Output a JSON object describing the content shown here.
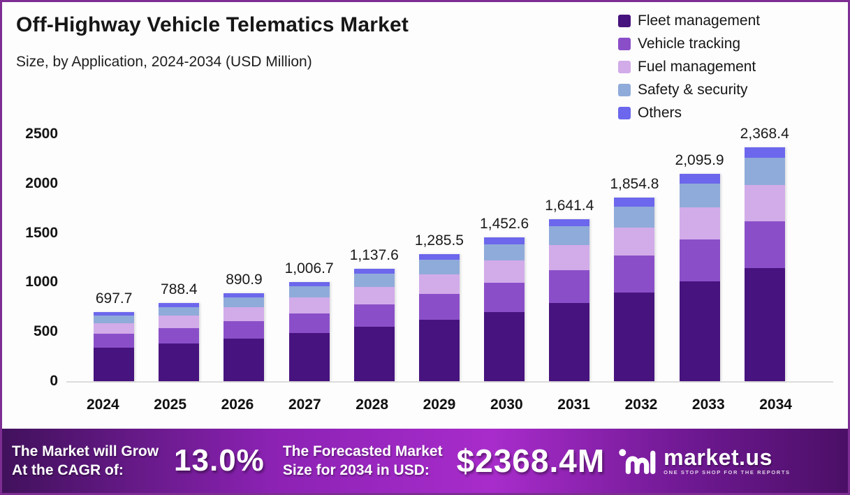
{
  "page": {
    "border_color": "#7e2d93",
    "background": "#fdfdfd"
  },
  "header": {
    "title": "Off-Highway Vehicle Telematics Market",
    "subtitle": "Size, by Application, 2024-2034 (USD Million)"
  },
  "legend": [
    {
      "label": "Fleet management",
      "color": "#47137e"
    },
    {
      "label": "Vehicle tracking",
      "color": "#8a4fc8"
    },
    {
      "label": "Fuel management",
      "color": "#d2abe9"
    },
    {
      "label": "Safety & security",
      "color": "#8fabda"
    },
    {
      "label": "Others",
      "color": "#6c67ec"
    }
  ],
  "chart_data": {
    "type": "bar",
    "stacked": true,
    "title": "Off-Highway Vehicle Telematics Market Size, by Application, 2024-2034 (USD Million)",
    "categories": [
      "2024",
      "2025",
      "2026",
      "2027",
      "2028",
      "2029",
      "2030",
      "2031",
      "2032",
      "2033",
      "2034"
    ],
    "totals": [
      697.7,
      788.4,
      890.9,
      1006.7,
      1137.6,
      1285.5,
      1452.6,
      1641.4,
      1854.8,
      2095.9,
      2368.4
    ],
    "total_labels": [
      "697.7",
      "788.4",
      "890.9",
      "1,006.7",
      "1,137.6",
      "1,285.5",
      "1,452.6",
      "1,641.4",
      "1,854.8",
      "2,095.9",
      "2,368.4"
    ],
    "series": [
      {
        "name": "Fleet management",
        "color": "#47137e",
        "values": [
          336.3,
          380.0,
          429.4,
          485.2,
          548.3,
          619.6,
          700.2,
          791.2,
          894.0,
          1010.2,
          1141.6
        ]
      },
      {
        "name": "Vehicle tracking",
        "color": "#8a4fc8",
        "values": [
          140.9,
          159.3,
          180.0,
          203.4,
          229.8,
          259.7,
          293.4,
          331.6,
          374.7,
          423.4,
          478.4
        ]
      },
      {
        "name": "Fuel management",
        "color": "#d2abe9",
        "values": [
          108.1,
          122.2,
          138.1,
          156.0,
          176.3,
          199.3,
          225.2,
          254.4,
          287.5,
          324.9,
          367.1
        ]
      },
      {
        "name": "Safety & security",
        "color": "#8fabda",
        "values": [
          80.2,
          90.7,
          102.5,
          115.8,
          130.8,
          147.8,
          167.0,
          188.8,
          213.3,
          241.0,
          272.4
        ]
      },
      {
        "name": "Others",
        "color": "#6c67ec",
        "values": [
          32.1,
          36.3,
          41.0,
          46.3,
          52.3,
          59.1,
          66.8,
          75.5,
          85.3,
          96.4,
          108.9
        ]
      }
    ],
    "xlabel": "",
    "ylabel": "",
    "yticks": [
      0,
      500,
      1000,
      1500,
      2000,
      2500
    ],
    "ylim": [
      0,
      2500
    ],
    "grid": false,
    "legend_position": "top-right"
  },
  "banner": {
    "cagr_label_line1": "The Market will Grow",
    "cagr_label_line2": "At the CAGR of:",
    "cagr_value": "13.0%",
    "forecast_label_line1": "The Forecasted Market",
    "forecast_label_line2": "Size for 2034 in USD:",
    "forecast_value": "$2368.4M",
    "logo_text": "market.us",
    "logo_tagline": "ONE STOP SHOP FOR THE REPORTS"
  }
}
